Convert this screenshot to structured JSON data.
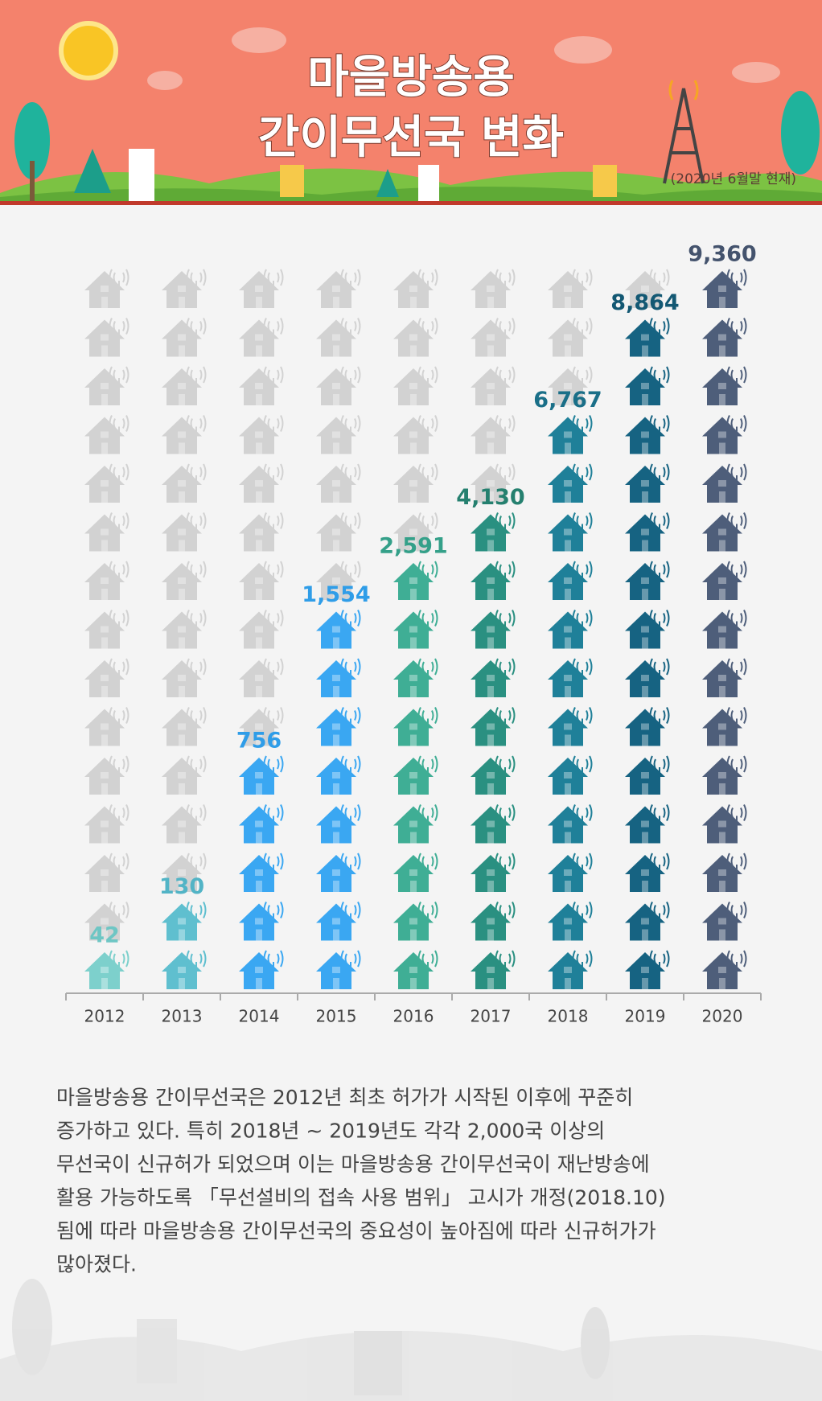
{
  "chart_data": {
    "type": "pictograph",
    "title": [
      "마을방송용",
      "간이무선국 변화"
    ],
    "note": "(2020년 6월말 현재)",
    "categories": [
      "2012",
      "2013",
      "2014",
      "2015",
      "2016",
      "2017",
      "2018",
      "2019",
      "2020"
    ],
    "values": [
      42,
      130,
      756,
      1554,
      2591,
      4130,
      6767,
      8864,
      9360
    ],
    "value_labels": [
      "42",
      "130",
      "756",
      "1,554",
      "2,591",
      "4,130",
      "6,767",
      "8,864",
      "9,360"
    ],
    "icons": [
      1,
      2,
      5,
      8,
      9,
      10,
      12,
      14,
      15
    ],
    "icon_rows": 15,
    "colors": [
      "#7dd0cc",
      "#5fbfcf",
      "#3aa7f2",
      "#3aa7f2",
      "#3fae95",
      "#2a9081",
      "#1f8099",
      "#166382",
      "#4e5e7a"
    ],
    "label_colors": [
      "#6ec6c4",
      "#52b4c6",
      "#2f9de8",
      "#2f9de8",
      "#34a089",
      "#25806f",
      "#1a6f88",
      "#135873",
      "#44536d"
    ],
    "inactive_color": "#d2d2d2",
    "description": [
      "마을방송용 간이무선국은 2012년 최초 허가가 시작된 이후에 꾸준히",
      "증가하고 있다. 특히 2018년 ~ 2019년도 각각 2,000국 이상의",
      "무선국이 신규허가 되었으며 이는 마을방송용 간이무선국이 재난방송에",
      "활용 가능하도록 「무선설비의 접속 사용 범위」 고시가 개정(2018.10)",
      "됨에 따라 마을방송용 간이무선국의 중요성이 높아짐에 따라 신규허가가",
      "많아졌다."
    ]
  }
}
